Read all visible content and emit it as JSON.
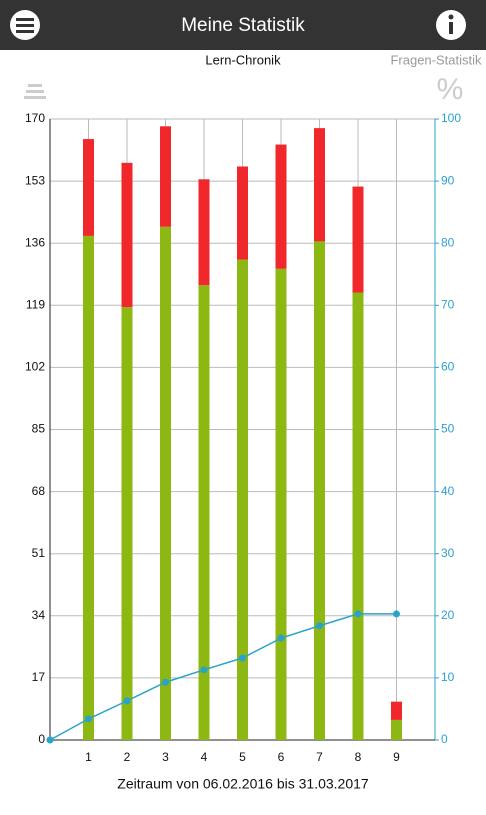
{
  "header": {
    "title": "Meine Statistik"
  },
  "tabs": [
    "Lern-Chronik",
    "Fragen-Statistik"
  ],
  "percent_icon": "%",
  "chart_data": {
    "type": "bar",
    "stacked": true,
    "categories": [
      1,
      2,
      3,
      4,
      5,
      6,
      7,
      8,
      9
    ],
    "xlim": [
      0,
      10
    ],
    "xticks": [
      1,
      2,
      3,
      4,
      5,
      6,
      7,
      8,
      9
    ],
    "ylim": [
      0,
      170
    ],
    "yticks": [
      0,
      17,
      34,
      51,
      68,
      85,
      102,
      119,
      136,
      153,
      170
    ],
    "y2lim": [
      0,
      100
    ],
    "y2ticks": [
      0,
      10,
      20,
      30,
      40,
      50,
      60,
      70,
      80,
      90,
      100
    ],
    "grid": true,
    "series": [
      {
        "color": "#8db814",
        "values": [
          138,
          118.5,
          140.5,
          124.5,
          131.5,
          129,
          136.5,
          122.5,
          5.5
        ]
      },
      {
        "color": "#f0272b",
        "values": [
          26.5,
          39.5,
          27.5,
          29,
          25.5,
          34,
          31,
          29,
          5
        ]
      },
      {
        "type": "line",
        "axis": "y2",
        "color": "#2aa3c9",
        "x": [
          0,
          1,
          2,
          3,
          4,
          5,
          6,
          7,
          8,
          9
        ],
        "values": [
          0,
          3.4,
          6.3,
          9.3,
          11.3,
          13.2,
          16.4,
          18.4,
          20.3,
          20.3
        ]
      }
    ],
    "xlabel": "Zeitraum von 06.02.2016 bis 31.03.2017"
  }
}
